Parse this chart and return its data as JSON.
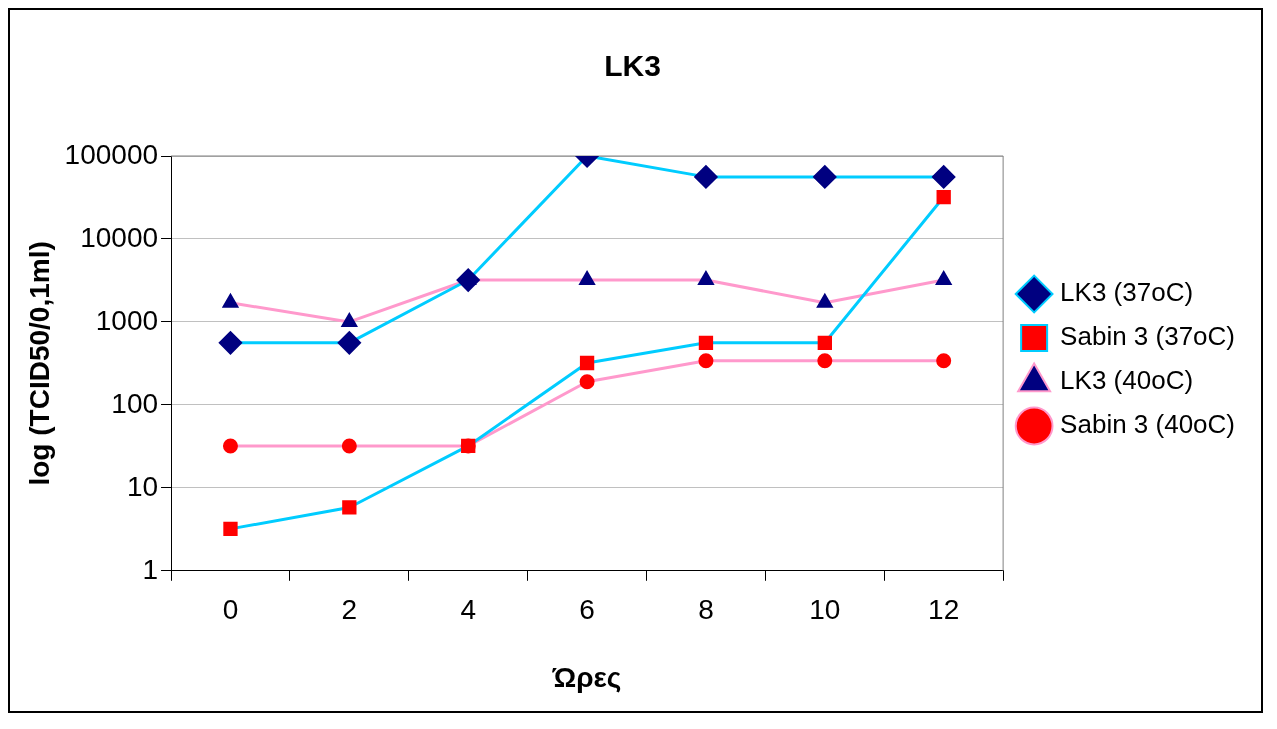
{
  "chart_data": {
    "type": "line",
    "title": "LK3",
    "xlabel": "Ώρες",
    "ylabel": "log (TCID50/0,1ml)",
    "categories": [
      "0",
      "2",
      "4",
      "6",
      "8",
      "10",
      "12"
    ],
    "log": "y",
    "ylim": [
      1,
      100000
    ],
    "yticks": [
      1,
      10,
      100,
      1000,
      10000,
      100000
    ],
    "grid": "y",
    "legend": "right",
    "line_style": "solid",
    "series": [
      {
        "name": "LK3 (37oC)",
        "color": "#00ccff",
        "marker": "diamond",
        "colors": [
          "#000080",
          "#000080",
          "#000080",
          "#000080",
          "#000080",
          "#000080",
          "#000080"
        ],
        "values": [
          560,
          560,
          3200,
          100000,
          56000,
          56000,
          56000
        ]
      },
      {
        "name": "Sabin 3 (37oC)",
        "color": "#00ccff",
        "marker": "square",
        "colors": [
          "#ff0000",
          "#ff0000",
          "#ff0000",
          "#ff0000",
          "#ff0000",
          "#ff0000",
          "#ff0000"
        ],
        "values": [
          3.2,
          5.8,
          32,
          320,
          560,
          560,
          32000
        ]
      },
      {
        "name": "LK3 (40oC)",
        "color": "#ff99cc",
        "marker": "triangle",
        "colors": [
          "#000080",
          "#000080",
          "#000080",
          "#000080",
          "#000080",
          "#000080",
          "#000080"
        ],
        "values": [
          1700,
          1000,
          3200,
          3200,
          3200,
          1700,
          3200
        ]
      },
      {
        "name": "Sabin 3 (40oC)",
        "color": "#ff99cc",
        "marker": "circle",
        "colors": [
          "#ff0000",
          "#ff0000",
          "#ff0000",
          "#ff0000",
          "#ff0000",
          "#ff0000",
          "#ff0000"
        ],
        "values": [
          32,
          32,
          32,
          190,
          340,
          340,
          340
        ]
      }
    ]
  }
}
